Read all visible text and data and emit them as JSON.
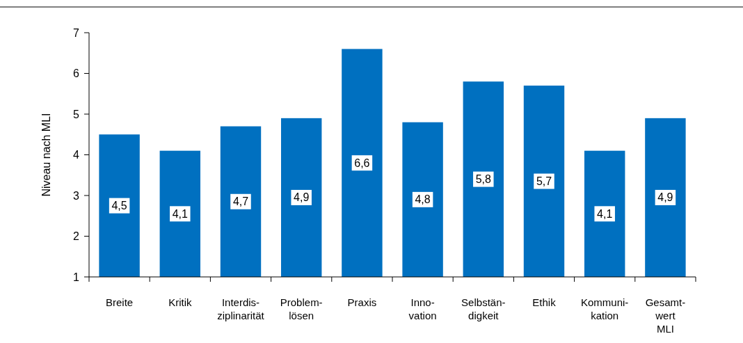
{
  "chart_data": {
    "type": "bar",
    "ylabel": "Niveau nach MLI",
    "categories": [
      "Breite",
      "Kritik",
      "Interdis-\nziplinarität",
      "Problem-\nlösen",
      "Praxis",
      "Inno-\nvation",
      "Selbstän-\ndigkeit",
      "Ethik",
      "Kommuni-\nkation",
      "Gesamt-\nwert\nMLI"
    ],
    "values": [
      4.5,
      4.1,
      4.7,
      4.9,
      6.6,
      4.8,
      5.8,
      5.7,
      4.1,
      4.9
    ],
    "value_labels": [
      "4,5",
      "4,1",
      "4,7",
      "4,9",
      "6,6",
      "4,8",
      "5,8",
      "5,7",
      "4,1",
      "4,9"
    ],
    "color": "#0070c0",
    "ylim": [
      1,
      7
    ],
    "yticks": [
      1,
      2,
      3,
      4,
      5,
      6,
      7
    ],
    "grid": false
  }
}
